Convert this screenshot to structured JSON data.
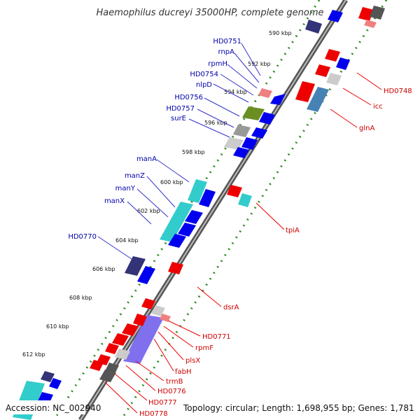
{
  "title": "Haemophilus ducreyi 35000HP, complete genome",
  "accession": "Accession: NC_002940",
  "summary": "Topology: circular; Length: 1,698,955 bp; Genes: 1,781",
  "ticks": [
    "590 kbp",
    "592 kbp",
    "594 kbp",
    "596 kbp",
    "598 kbp",
    "600 kbp",
    "602 kbp",
    "604 kbp",
    "606 kbp",
    "608 kbp",
    "610 kbp",
    "612 kbp"
  ],
  "left_labels": [
    "HD0751",
    "rnpA",
    "rpmH",
    "HD0754",
    "nlpD",
    "HD0756",
    "HD0757",
    "surE",
    "manA",
    "manZ",
    "manY",
    "manX",
    "HD0770"
  ],
  "right_labels": [
    "HD0748",
    "icc",
    "glnA",
    "tpiA",
    "dsrA",
    "HD0771",
    "rpmF",
    "plsX",
    "fabH",
    "trmB",
    "HD0776",
    "HD0777",
    "HD0778"
  ],
  "colors": {
    "backbone": "#6e6e6e",
    "dots": "#2e8b22",
    "forward": "#0000ee",
    "reverse": "#ee0000",
    "cyan": "#33cccc",
    "navy": "#333377",
    "olive": "#6b8e23",
    "steel": "#4682b4",
    "grey": "#999999",
    "pink": "#f08080"
  }
}
